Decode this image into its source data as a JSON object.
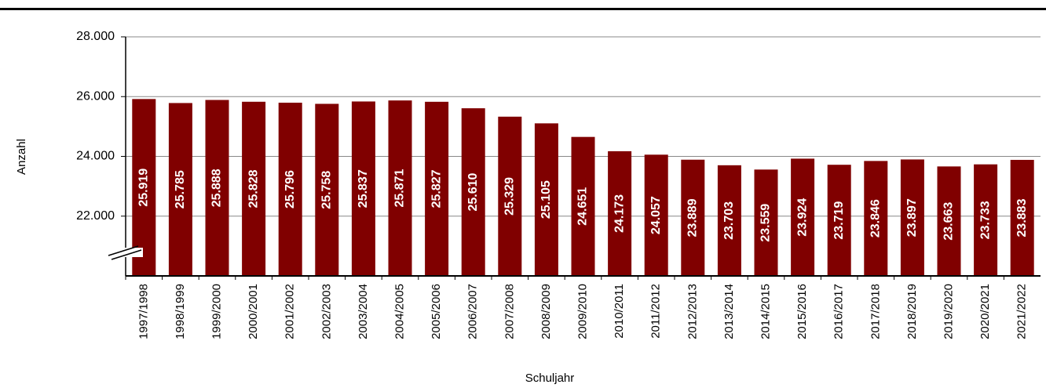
{
  "chart_data": {
    "type": "bar",
    "x_label": "Schuljahr",
    "y_label": "Anzahl",
    "categories": [
      "1997/1998",
      "1998/1999",
      "1999/2000",
      "2000/2001",
      "2001/2002",
      "2002/2003",
      "2003/2004",
      "2004/2005",
      "2005/2006",
      "2006/2007",
      "2007/2008",
      "2008/2009",
      "2009/2010",
      "2010/2011",
      "2011/2012",
      "2012/2013",
      "2013/2014",
      "2014/2015",
      "2015/2016",
      "2016/2017",
      "2017/2018",
      "2018/2019",
      "2019/2020",
      "2020/2021",
      "2021/2022"
    ],
    "values": [
      25919,
      25785,
      25888,
      25828,
      25796,
      25758,
      25837,
      25871,
      25827,
      25610,
      25329,
      25105,
      24651,
      24173,
      24057,
      23889,
      23703,
      23559,
      23924,
      23719,
      23846,
      23897,
      23663,
      23733,
      23883
    ],
    "value_labels": [
      "25.919",
      "25.785",
      "25.888",
      "25.828",
      "25.796",
      "25.758",
      "25.837",
      "25.871",
      "25.827",
      "25.610",
      "25.329",
      "25.105",
      "24.651",
      "24.173",
      "24.057",
      "23.889",
      "23.703",
      "23.559",
      "23.924",
      "23.719",
      "23.846",
      "23.897",
      "23.663",
      "23.733",
      "23.883"
    ],
    "color": "#800000",
    "ylim": [
      20000,
      28000
    ],
    "yticks": [
      {
        "value": 22000,
        "label": "22.000"
      },
      {
        "value": 24000,
        "label": "24.000"
      },
      {
        "value": 26000,
        "label": "26.000"
      },
      {
        "value": 28000,
        "label": "28.000"
      }
    ],
    "grid": true
  }
}
